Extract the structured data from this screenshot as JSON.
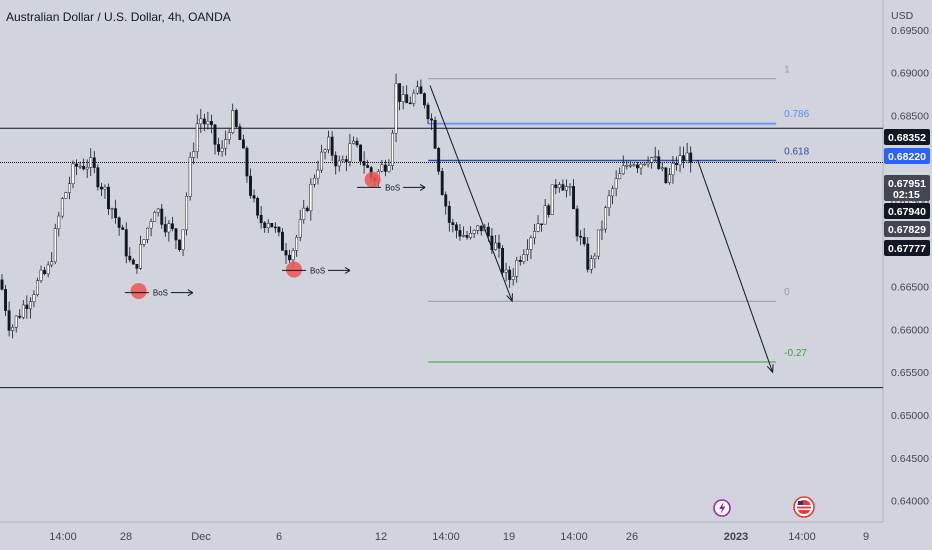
{
  "chart_data": {
    "type": "candlestick",
    "title": "Australian Dollar / U.S. Dollar, 4h, OANDA",
    "currency": "USD",
    "ylim": [
      0.6375,
      0.6985
    ],
    "y_ticks": [
      "0.69500",
      "0.69000",
      "0.68500",
      "0.68000",
      "0.67500",
      "0.67000",
      "0.66500",
      "0.66000",
      "0.65500",
      "0.65000",
      "0.64500",
      "0.64000"
    ],
    "x_ticks": [
      "14:00",
      "28",
      "Dec",
      "6",
      "12",
      "14:00",
      "19",
      "14:00",
      "26",
      "2023",
      "14:00",
      "9"
    ],
    "price_tags": [
      {
        "label": "0.68352",
        "value": 0.68352,
        "bg": "#131722"
      },
      {
        "label": "0.68220",
        "value": 0.6822,
        "bg": "#2962ff"
      },
      {
        "label": "0.67951",
        "value": 0.67951,
        "bg": "#434651",
        "sub": "02:15"
      },
      {
        "label": "0.67940",
        "value": 0.6794,
        "bg": "#131722"
      },
      {
        "label": "0.67829",
        "value": 0.67829,
        "bg": "#434651"
      },
      {
        "label": "0.67777",
        "value": 0.67777,
        "bg": "#131722"
      }
    ],
    "horizontal_levels": [
      {
        "value": 0.68352,
        "color": "#131722",
        "style": "solid"
      },
      {
        "value": 0.67951,
        "color": "#131722",
        "style": "dotted"
      },
      {
        "value": 0.6532,
        "color": "#131722",
        "style": "solid"
      }
    ],
    "fib_levels": [
      {
        "label": "1",
        "value": 0.6893,
        "color": "#9598a1"
      },
      {
        "label": "0.786",
        "value": 0.6841,
        "color": "#5b8cf5"
      },
      {
        "label": "0.618",
        "value": 0.67975,
        "color": "#2c4fa8"
      },
      {
        "label": "0",
        "value": 0.6633,
        "color": "#9598a1"
      },
      {
        "label": "-0.27",
        "value": 0.6562,
        "color": "#35a335"
      }
    ],
    "bos_labels": [
      {
        "label": "BoS",
        "x": 0.155,
        "value": 0.6643
      },
      {
        "label": "BoS",
        "x": 0.333,
        "value": 0.6669
      },
      {
        "label": "BoS",
        "x": 0.418,
        "value": 0.6766
      }
    ],
    "price_path": [
      [
        0.0,
        0.6658
      ],
      [
        0.012,
        0.66
      ],
      [
        0.025,
        0.6625
      ],
      [
        0.04,
        0.665
      ],
      [
        0.055,
        0.667
      ],
      [
        0.07,
        0.6748
      ],
      [
        0.085,
        0.679
      ],
      [
        0.1,
        0.6795
      ],
      [
        0.115,
        0.677
      ],
      [
        0.128,
        0.674
      ],
      [
        0.14,
        0.6705
      ],
      [
        0.15,
        0.6666
      ],
      [
        0.16,
        0.6695
      ],
      [
        0.175,
        0.6745
      ],
      [
        0.19,
        0.672
      ],
      [
        0.205,
        0.67
      ],
      [
        0.215,
        0.679
      ],
      [
        0.225,
        0.685
      ],
      [
        0.237,
        0.6835
      ],
      [
        0.25,
        0.68
      ],
      [
        0.262,
        0.685
      ],
      [
        0.272,
        0.682
      ],
      [
        0.282,
        0.677
      ],
      [
        0.292,
        0.6725
      ],
      [
        0.305,
        0.673
      ],
      [
        0.318,
        0.67
      ],
      [
        0.33,
        0.669
      ],
      [
        0.345,
        0.6735
      ],
      [
        0.358,
        0.679
      ],
      [
        0.372,
        0.6815
      ],
      [
        0.385,
        0.679
      ],
      [
        0.398,
        0.6815
      ],
      [
        0.41,
        0.68
      ],
      [
        0.422,
        0.6775
      ],
      [
        0.432,
        0.6788
      ],
      [
        0.442,
        0.6805
      ],
      [
        0.448,
        0.6885
      ],
      [
        0.458,
        0.686
      ],
      [
        0.47,
        0.6875
      ],
      [
        0.48,
        0.687
      ],
      [
        0.49,
        0.684
      ],
      [
        0.5,
        0.677
      ],
      [
        0.51,
        0.672
      ],
      [
        0.52,
        0.6715
      ],
      [
        0.532,
        0.6705
      ],
      [
        0.545,
        0.672
      ],
      [
        0.56,
        0.67
      ],
      [
        0.575,
        0.6655
      ],
      [
        0.59,
        0.669
      ],
      [
        0.605,
        0.672
      ],
      [
        0.62,
        0.674
      ],
      [
        0.632,
        0.678
      ],
      [
        0.645,
        0.676
      ],
      [
        0.655,
        0.671
      ],
      [
        0.668,
        0.667
      ],
      [
        0.68,
        0.6715
      ],
      [
        0.692,
        0.676
      ],
      [
        0.703,
        0.678
      ],
      [
        0.714,
        0.68
      ],
      [
        0.724,
        0.6795
      ],
      [
        0.735,
        0.6805
      ],
      [
        0.745,
        0.679
      ],
      [
        0.755,
        0.677
      ],
      [
        0.765,
        0.6795
      ],
      [
        0.775,
        0.68
      ],
      [
        0.784,
        0.6805
      ]
    ],
    "arrows": [
      {
        "from": [
          0.487,
          0.6885
        ],
        "to": [
          0.58,
          0.6633
        ]
      },
      {
        "from": [
          0.79,
          0.6798
        ],
        "to": [
          0.875,
          0.655
        ]
      }
    ],
    "red_markers": [
      [
        0.157,
        0.6645
      ],
      [
        0.333,
        0.667
      ],
      [
        0.422,
        0.6775
      ]
    ],
    "bottom_icons": [
      "lightning-icon",
      "us-flag-icon"
    ]
  }
}
